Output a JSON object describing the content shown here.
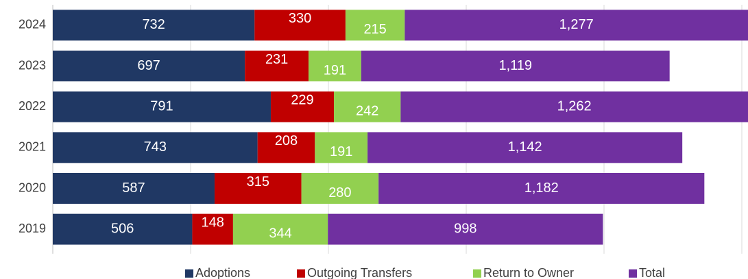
{
  "chart_data": {
    "type": "stacked-bar",
    "orientation": "horizontal",
    "categories": [
      "2024",
      "2023",
      "2022",
      "2021",
      "2020",
      "2019"
    ],
    "series": [
      {
        "name": "Adoptions",
        "color": "#203864",
        "values": [
          732,
          697,
          791,
          743,
          587,
          506
        ]
      },
      {
        "name": "Outgoing Transfers",
        "color": "#c00000",
        "values": [
          330,
          231,
          229,
          208,
          315,
          148
        ]
      },
      {
        "name": "Return to Owner",
        "color": "#92d050",
        "values": [
          215,
          191,
          242,
          191,
          280,
          344
        ]
      },
      {
        "name": "Total",
        "color": "#7030a0",
        "values": [
          1277,
          1119,
          1262,
          1142,
          1182,
          998
        ],
        "value_labels": [
          "1,277",
          "1,119",
          "1,262",
          "1,142",
          "1,182",
          "998"
        ]
      }
    ],
    "xlim": [
      0,
      2500
    ],
    "xticks": [
      0,
      500,
      1000,
      1500,
      2000,
      2500
    ],
    "grid": true,
    "legend": "bottom"
  }
}
